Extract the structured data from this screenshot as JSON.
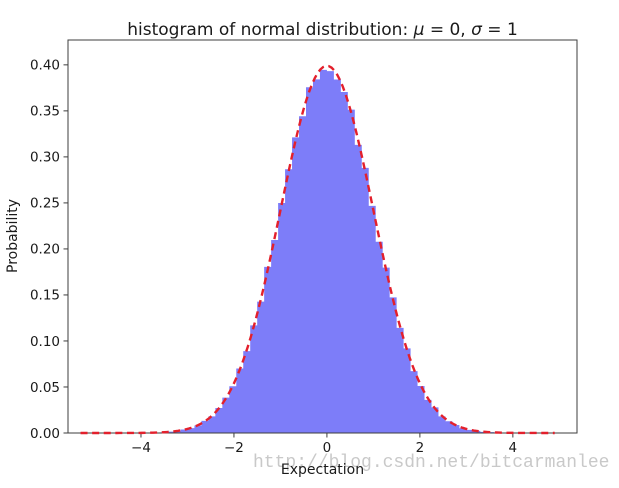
{
  "watermark": "http://blog.csdn.net/bitcarmanlee",
  "colors": {
    "background": "#ffffff",
    "hist_fill": "#7d7df9",
    "curve_red": "#e3202c",
    "spine": "#3d3d3d",
    "text": "#1a1a1a",
    "watermark": "#c9c9c9"
  },
  "chart_data": {
    "type": "bar",
    "subtype": "histogram_with_pdf_overlay",
    "title": "histogram of normal distribution: μ = 0, σ = 1",
    "title_parts": [
      {
        "text": "histogram of normal distribution: ",
        "italic": false
      },
      {
        "text": "μ",
        "italic": true
      },
      {
        "text": " = 0, ",
        "italic": false
      },
      {
        "text": "σ",
        "italic": true
      },
      {
        "text": " = 1",
        "italic": false
      }
    ],
    "xlabel": "Expectation",
    "ylabel": "Probability",
    "xlim": [
      -5.57,
      5.38
    ],
    "ylim": [
      0,
      0.427
    ],
    "xticks": [
      -4,
      -2,
      0,
      2,
      4
    ],
    "yticks": [
      0.0,
      0.05,
      0.1,
      0.15,
      0.2,
      0.25,
      0.3,
      0.35,
      0.4
    ],
    "grid": false,
    "legend": null,
    "histogram": {
      "bin_start": -3.6,
      "bin_width": 0.15,
      "n_bins": 48,
      "heights": [
        0.0007,
        0.0015,
        0.0021,
        0.0038,
        0.0053,
        0.0081,
        0.0132,
        0.0181,
        0.0272,
        0.0385,
        0.0508,
        0.0701,
        0.0889,
        0.117,
        0.1428,
        0.1805,
        0.2097,
        0.2499,
        0.2865,
        0.3212,
        0.3442,
        0.3756,
        0.3842,
        0.3946,
        0.3932,
        0.3841,
        0.3705,
        0.3514,
        0.313,
        0.2881,
        0.2468,
        0.2078,
        0.1797,
        0.1473,
        0.1142,
        0.092,
        0.0672,
        0.0511,
        0.036,
        0.0278,
        0.018,
        0.0128,
        0.0087,
        0.0051,
        0.0034,
        0.0023,
        0.0012,
        0.0009
      ]
    },
    "overlay_curve": {
      "shape": "normal_pdf",
      "mu": 0,
      "sigma": 1,
      "peak_value": 0.3989,
      "x_range": [
        -5.3,
        4.9
      ],
      "line_style": "dashed",
      "color_name": "red"
    }
  }
}
